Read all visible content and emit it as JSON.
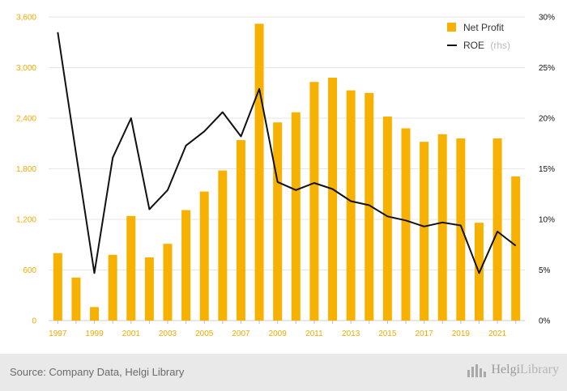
{
  "chart_data": {
    "type": "bar+line",
    "x": [
      "1997",
      "1998",
      "1999",
      "2000",
      "2001",
      "2002",
      "2003",
      "2004",
      "2005",
      "2006",
      "2007",
      "2008",
      "2009",
      "2010",
      "2011",
      "2012",
      "2013",
      "2014",
      "2015",
      "2016",
      "2017",
      "2018",
      "2019",
      "2020",
      "2021",
      "2022"
    ],
    "x_tick_labels": [
      "1997",
      "1999",
      "2001",
      "2003",
      "2005",
      "2007",
      "2009",
      "2011",
      "2013",
      "2015",
      "2017",
      "2019",
      "2021"
    ],
    "series": [
      {
        "name": "Net Profit",
        "type": "bar",
        "axis": "left",
        "color": "#f7b100",
        "values": [
          800,
          510,
          160,
          780,
          1240,
          750,
          910,
          1310,
          1530,
          1780,
          2140,
          3520,
          2350,
          2470,
          2830,
          2880,
          2730,
          2700,
          2420,
          2280,
          2120,
          2210,
          2160,
          1160,
          2160,
          1710
        ]
      },
      {
        "name": "ROE",
        "name_suffix": "(rhs)",
        "type": "line",
        "axis": "right",
        "color": "#111111",
        "values": [
          28.5,
          16.5,
          4.7,
          16.1,
          20.0,
          11.0,
          12.9,
          17.3,
          18.7,
          20.6,
          18.2,
          22.9,
          13.7,
          12.9,
          13.6,
          13.0,
          11.8,
          11.4,
          10.3,
          9.9,
          9.3,
          9.7,
          9.4,
          4.7,
          8.8,
          7.4
        ]
      }
    ],
    "yleft": {
      "ticks": [
        "0",
        "600",
        "1,200",
        "1,800",
        "2,400",
        "3,000",
        "3,600"
      ],
      "lim": [
        0,
        3600
      ]
    },
    "yright": {
      "ticks": [
        "0%",
        "5%",
        "10%",
        "15%",
        "20%",
        "25%",
        "30%"
      ],
      "lim": [
        0,
        30
      ]
    },
    "grid": true,
    "legend": "top-right"
  },
  "footer": {
    "source": "Source: Company Data, Helgi Library",
    "brand_part1": "Helgi",
    "brand_part2": "Library",
    "brand_icon": "bar-chart-icon"
  },
  "colors": {
    "accent": "#f7b100",
    "line": "#111111",
    "tick_left": "#f2a900"
  }
}
